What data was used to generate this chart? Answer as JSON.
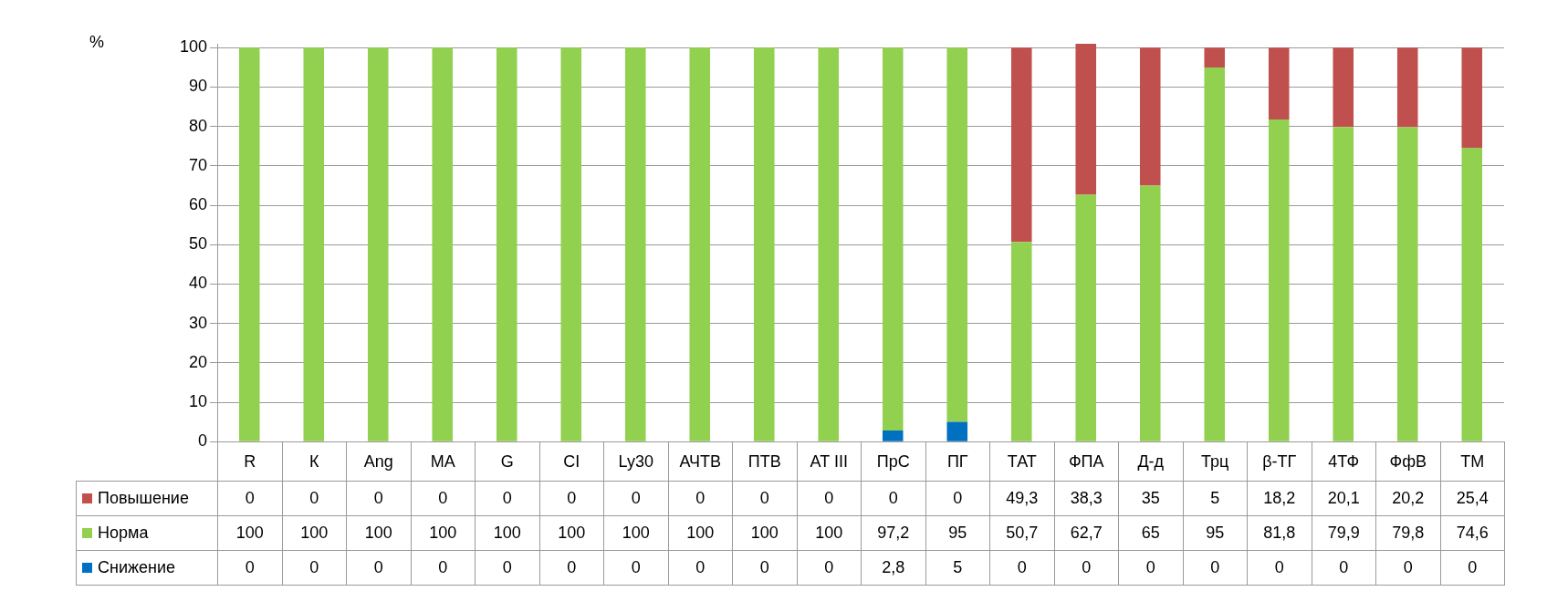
{
  "chart_data": {
    "type": "bar",
    "stacked": true,
    "ylabel": "%",
    "categories": [
      "R",
      "К",
      "Ang",
      "МА",
      "G",
      "CI",
      "Ly30",
      "АЧТВ",
      "ПТВ",
      "AT III",
      "ПрС",
      "ПГ",
      "ТАТ",
      "ФПА",
      "Д-д",
      "Трц",
      "β-ТГ",
      "4ТФ",
      "ФфВ",
      "ТМ"
    ],
    "series": [
      {
        "name": "Снижение",
        "color": "#0070c0",
        "values": [
          0,
          0,
          0,
          0,
          0,
          0,
          0,
          0,
          0,
          0,
          2.8,
          5,
          0,
          0,
          0,
          0,
          0,
          0,
          0,
          0
        ],
        "value_labels": [
          "0",
          "0",
          "0",
          "0",
          "0",
          "0",
          "0",
          "0",
          "0",
          "0",
          "2,8",
          "5",
          "0",
          "0",
          "0",
          "0",
          "0",
          "0",
          "0",
          "0"
        ]
      },
      {
        "name": "Норма",
        "color": "#92d050",
        "values": [
          100,
          100,
          100,
          100,
          100,
          100,
          100,
          100,
          100,
          100,
          97.2,
          95,
          50.7,
          62.7,
          65,
          95,
          81.8,
          79.9,
          79.8,
          74.6
        ],
        "value_labels": [
          "100",
          "100",
          "100",
          "100",
          "100",
          "100",
          "100",
          "100",
          "100",
          "100",
          "97,2",
          "95",
          "50,7",
          "62,7",
          "65",
          "95",
          "81,8",
          "79,9",
          "79,8",
          "74,6"
        ]
      },
      {
        "name": "Повышение",
        "color": "#c0504d",
        "values": [
          0,
          0,
          0,
          0,
          0,
          0,
          0,
          0,
          0,
          0,
          0,
          0,
          49.3,
          38.3,
          35,
          5,
          18.2,
          20.1,
          20.2,
          25.4
        ],
        "value_labels": [
          "0",
          "0",
          "0",
          "0",
          "0",
          "0",
          "0",
          "0",
          "0",
          "0",
          "0",
          "0",
          "49,3",
          "38,3",
          "35",
          "5",
          "18,2",
          "20,1",
          "20,2",
          "25,4"
        ]
      }
    ],
    "ylim": [
      0,
      101
    ],
    "yticks": [
      0,
      10,
      20,
      30,
      40,
      50,
      60,
      70,
      80,
      90,
      100
    ],
    "grid": "y",
    "legend": "bottom"
  }
}
